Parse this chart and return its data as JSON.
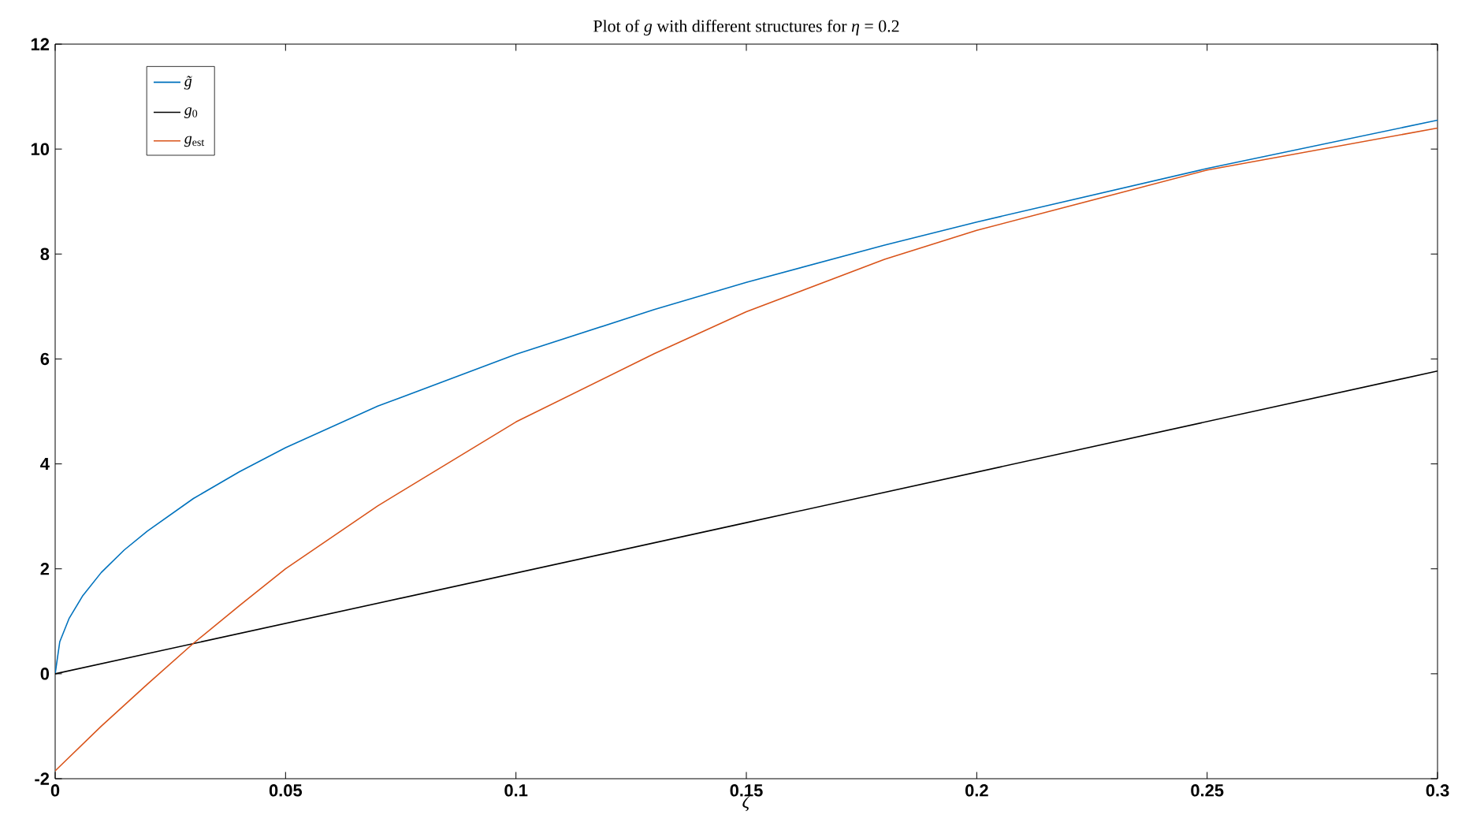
{
  "chart_data": {
    "type": "line",
    "title": "Plot of *g* with different structures for *η* = 0.2",
    "xlabel": "*ζ*",
    "xlim": [
      0,
      0.3
    ],
    "xticks": [
      0,
      0.05,
      0.1,
      0.15,
      0.2,
      0.25,
      0.3
    ],
    "ylim": [
      -2,
      12
    ],
    "yticks": [
      -2,
      0,
      2,
      4,
      6,
      8,
      10,
      12
    ],
    "grid": false,
    "legend": "top left",
    "marker": "none",
    "line_style": "solid",
    "series": [
      {
        "name": "*g̃*",
        "color": "#0072bd",
        "x": [
          0,
          0.001,
          0.003,
          0.006,
          0.01,
          0.015,
          0.02,
          0.03,
          0.04,
          0.05,
          0.07,
          0.1,
          0.13,
          0.15,
          0.18,
          0.2,
          0.25,
          0.3
        ],
        "values": [
          0,
          0.61,
          1.05,
          1.49,
          1.93,
          2.36,
          2.72,
          3.34,
          3.85,
          4.31,
          5.1,
          6.09,
          6.94,
          7.46,
          8.17,
          8.61,
          9.63,
          10.55
        ]
      },
      {
        "name": "*g*$_{0}$",
        "color": "#000000",
        "x": [
          0,
          0.15,
          0.3
        ],
        "values": [
          0,
          2.88,
          5.77
        ]
      },
      {
        "name": "*g*$_{est}$",
        "color": "#d95319",
        "x": [
          0,
          0.01,
          0.02,
          0.03,
          0.04,
          0.05,
          0.07,
          0.1,
          0.13,
          0.15,
          0.18,
          0.2,
          0.25,
          0.3
        ],
        "values": [
          -1.85,
          -1.0,
          -0.2,
          0.58,
          1.3,
          2.0,
          3.2,
          4.8,
          6.1,
          6.9,
          7.9,
          8.45,
          9.6,
          10.4
        ]
      }
    ]
  }
}
